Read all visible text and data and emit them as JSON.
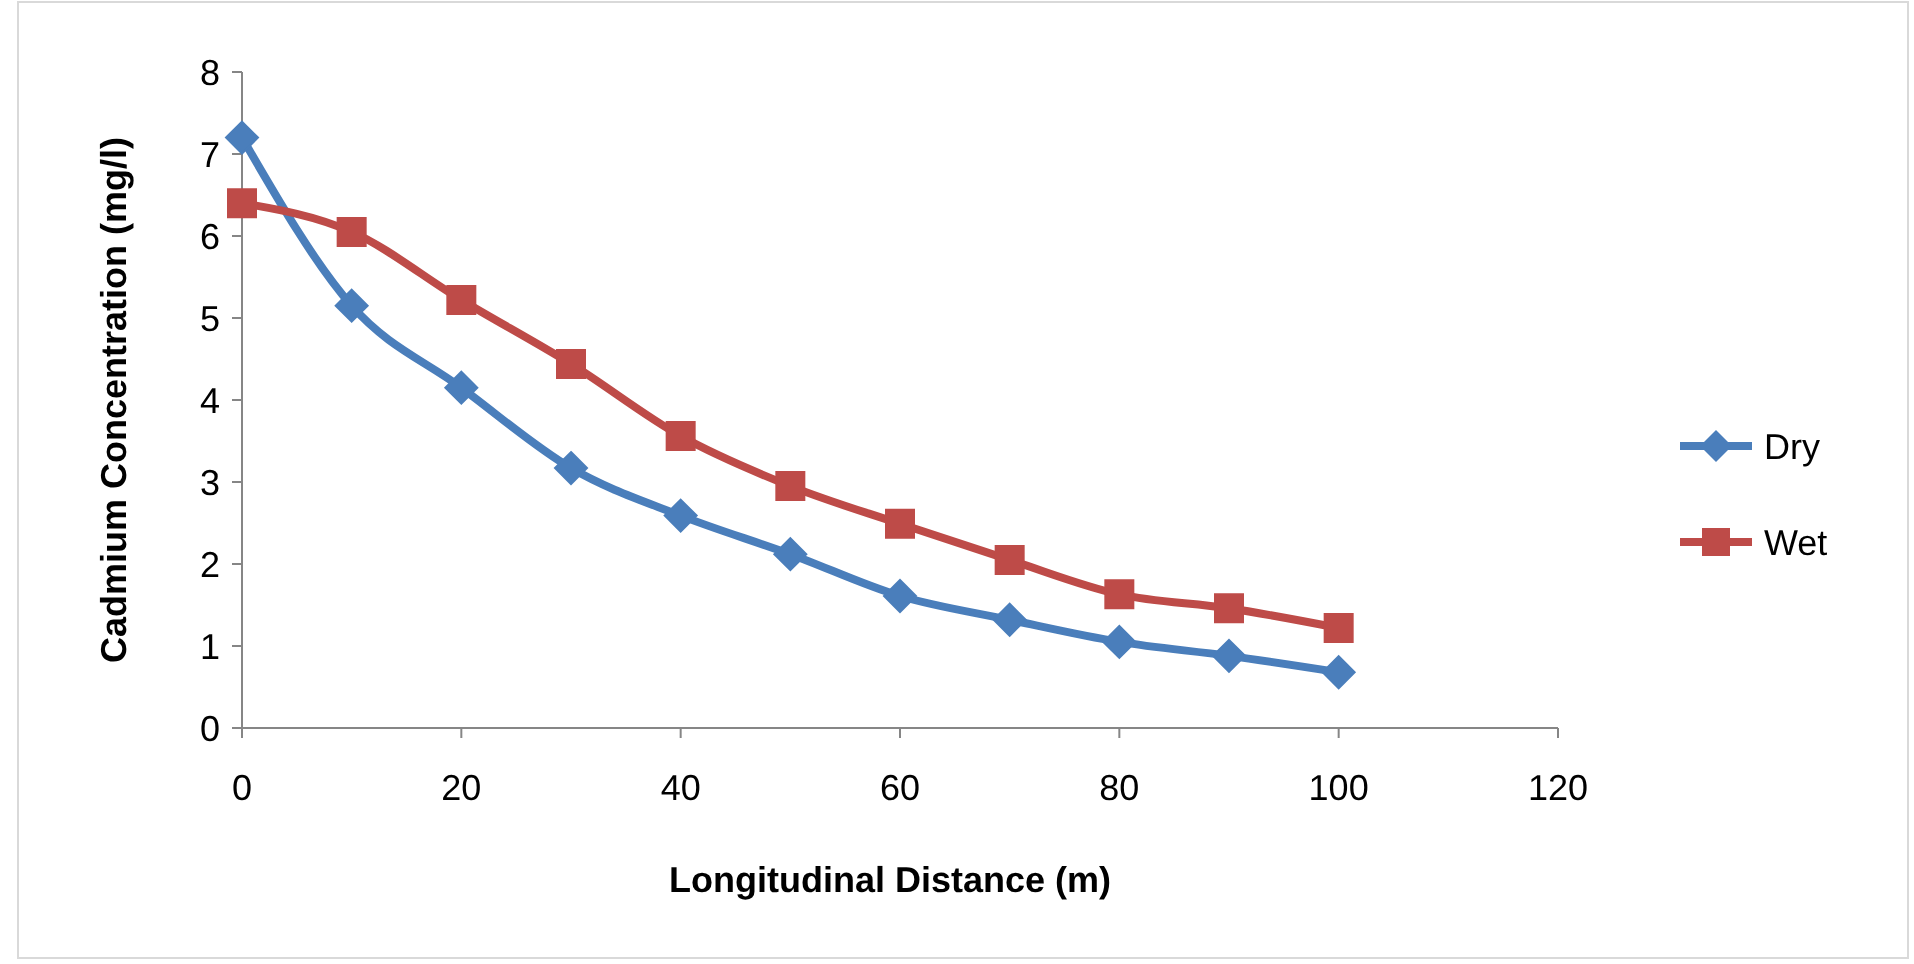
{
  "chart_data": {
    "type": "line",
    "xlabel": "Longitudinal Distance (m)",
    "ylabel": "Cadmium Concentration (mg/l)",
    "x": [
      0,
      10,
      20,
      30,
      40,
      50,
      60,
      70,
      80,
      90,
      100
    ],
    "series": [
      {
        "name": "Dry",
        "color": "#4a7ebb",
        "marker": "diamond",
        "values": [
          7.2,
          5.15,
          4.15,
          3.17,
          2.59,
          2.12,
          1.61,
          1.32,
          1.05,
          0.88,
          0.68
        ]
      },
      {
        "name": "Wet",
        "color": "#be4b48",
        "marker": "square",
        "values": [
          6.4,
          6.05,
          5.22,
          4.44,
          3.56,
          2.95,
          2.49,
          2.05,
          1.63,
          1.46,
          1.22
        ]
      }
    ],
    "xlim": [
      0,
      120
    ],
    "xticks": [
      0,
      20,
      40,
      60,
      80,
      100,
      120
    ],
    "ylim": [
      0,
      8
    ],
    "yticks": [
      0,
      1,
      2,
      3,
      4,
      5,
      6,
      7,
      8
    ],
    "grid": false,
    "legend": "right"
  }
}
